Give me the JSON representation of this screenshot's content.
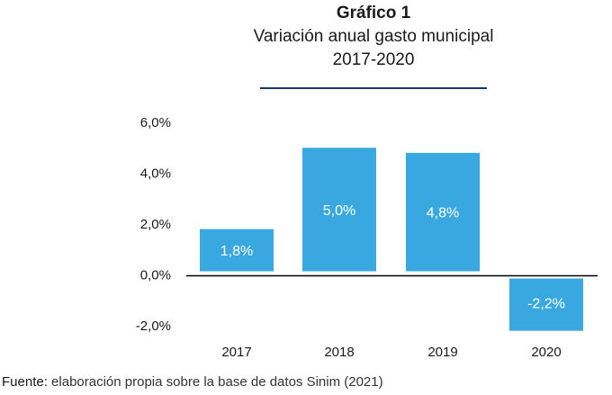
{
  "title": "Gráfico 1",
  "subtitle": "Variación anual gasto municipal",
  "period": "2017-2020",
  "source_label": "Fuente:",
  "source_text": "elaboración propia sobre la base de datos Sinim (2021)",
  "chart_data": {
    "type": "bar",
    "title": "Gráfico 1",
    "subtitle": "Variación anual gasto municipal 2017-2020",
    "categories": [
      "2017",
      "2018",
      "2019",
      "2020"
    ],
    "values": [
      1.8,
      5.0,
      4.8,
      -2.2
    ],
    "data_labels": [
      "1,8%",
      "5,0%",
      "4,8%",
      "-2,2%"
    ],
    "yticks": [
      6,
      4,
      2,
      0,
      -2
    ],
    "ytick_labels": [
      "6,0%",
      "4,0%",
      "2,0%",
      "0,0%",
      "-2,0%"
    ],
    "ylim": [
      -2,
      6
    ],
    "xlabel": "",
    "ylabel": "",
    "grid": false,
    "bar_color": "#3aa8e0",
    "axis_color": "#000000"
  }
}
